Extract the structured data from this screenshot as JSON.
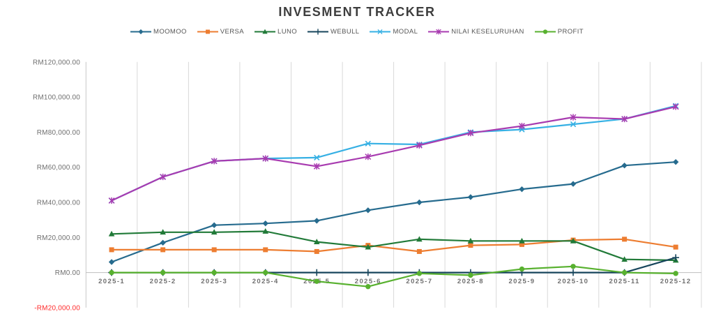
{
  "title": "INVESMENT TRACKER",
  "currency_prefix": "RM",
  "colors": {
    "background": "#ffffff",
    "title_text": "#3d3d3d",
    "legend_text": "#565656",
    "tick_text": "#6f6f6f",
    "negative_tick_text": "#ff2a2a",
    "gridline": "#d9d9d9",
    "axis_line": "#bfbfbf"
  },
  "chart_data": {
    "type": "line",
    "title": "INVESMENT TRACKER",
    "xlabel": "",
    "ylabel": "",
    "legend_position": "top",
    "grid": "vertical-only",
    "ylim": [
      -20000,
      120000
    ],
    "ytick_step": 20000,
    "yticks": [
      {
        "value": 120000,
        "label": "RM120,000.00"
      },
      {
        "value": 100000,
        "label": "RM100,000.00"
      },
      {
        "value": 80000,
        "label": "RM80,000.00"
      },
      {
        "value": 60000,
        "label": "RM60,000.00"
      },
      {
        "value": 40000,
        "label": "RM40,000.00"
      },
      {
        "value": 20000,
        "label": "RM20,000.00"
      },
      {
        "value": 0,
        "label": "RM0.00"
      },
      {
        "value": -20000,
        "label": "-RM20,000.00",
        "negative": true
      }
    ],
    "categories": [
      "2025-1",
      "2025-2",
      "2025-3",
      "2025-4",
      "2025-5",
      "2025-6",
      "2025-7",
      "2025-8",
      "2025-9",
      "2025-10",
      "2025-11",
      "2025-12"
    ],
    "series": [
      {
        "name": "MOOMOO",
        "color": "#266b8e",
        "marker": "diamond",
        "values": [
          6000,
          17000,
          27000,
          28000,
          29500,
          35500,
          40000,
          43000,
          47500,
          50500,
          61000,
          63000
        ]
      },
      {
        "name": "VERSA",
        "color": "#ed7d31",
        "marker": "square",
        "values": [
          13000,
          13000,
          13000,
          13000,
          12000,
          15500,
          12000,
          15500,
          16000,
          18500,
          19000,
          14500
        ]
      },
      {
        "name": "LUNO",
        "color": "#217a38",
        "marker": "triangle",
        "values": [
          22000,
          23000,
          23000,
          23500,
          17500,
          14500,
          19000,
          18000,
          18000,
          18000,
          7500,
          7000
        ]
      },
      {
        "name": "WEBULL",
        "color": "#17455c",
        "marker": "plus",
        "values": [
          0,
          0,
          0,
          0,
          0,
          0,
          0,
          0,
          0,
          0,
          0,
          8500
        ]
      },
      {
        "name": "MODAL",
        "color": "#36b0e4",
        "marker": "x",
        "values": [
          41000,
          54500,
          63500,
          65000,
          65500,
          73500,
          73000,
          80000,
          81500,
          84500,
          87500,
          95000
        ]
      },
      {
        "name": "NILAI KESELURUHAN",
        "color": "#a83bb0",
        "marker": "asterisk",
        "values": [
          41000,
          54500,
          63500,
          65000,
          60500,
          66000,
          72500,
          79500,
          83500,
          88500,
          87500,
          94500
        ]
      },
      {
        "name": "PROFIT",
        "color": "#58b12f",
        "marker": "circle",
        "values": [
          0,
          0,
          0,
          0,
          -5000,
          -8000,
          -500,
          -1500,
          2000,
          3500,
          0,
          -500
        ]
      }
    ]
  }
}
